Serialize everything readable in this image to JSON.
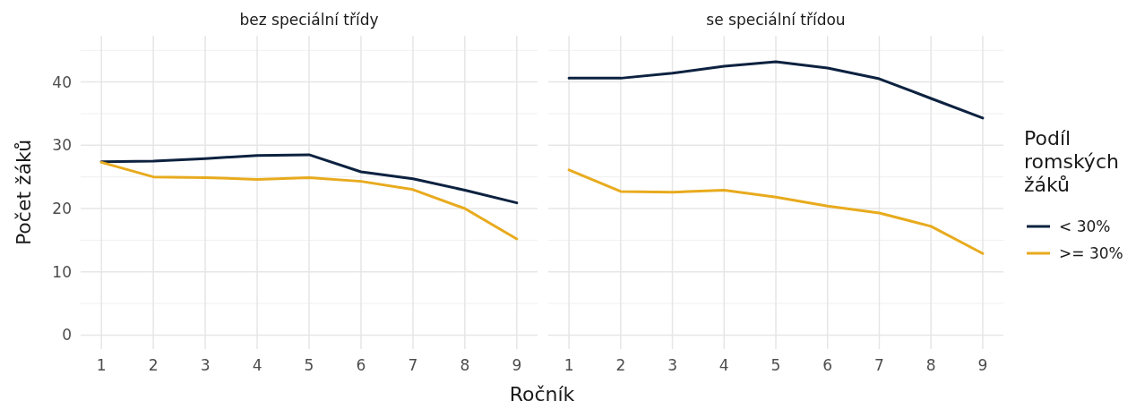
{
  "chart_data": [
    {
      "type": "line",
      "title": "bez speciální třídy",
      "xlabel": "Ročník",
      "ylabel": "Počet žáků",
      "x": [
        1,
        2,
        3,
        4,
        5,
        6,
        7,
        8,
        9
      ],
      "xlim": [
        0.6,
        9.4
      ],
      "xticks": [
        1,
        2,
        3,
        4,
        5,
        6,
        7,
        8,
        9
      ],
      "ylim": [
        -2.2,
        47.3
      ],
      "yticks": [
        0,
        {
          "value": 5,
          "label": null
        },
        10,
        {
          "value": 15,
          "label": null
        },
        20,
        {
          "value": 25,
          "label": null
        },
        30,
        {
          "value": 35,
          "label": null
        },
        40,
        {
          "value": 45,
          "label": null
        }
      ],
      "grid": true,
      "legend": false,
      "series": [
        {
          "color": "#0d2240",
          "values": [
            27.4,
            27.5,
            27.9,
            28.4,
            28.5,
            25.8,
            24.7,
            22.9,
            20.9
          ]
        },
        {
          "color": "#e8ab1e",
          "values": [
            27.3,
            25.0,
            24.9,
            24.6,
            24.9,
            24.3,
            23.0,
            20.0,
            15.2
          ]
        }
      ]
    },
    {
      "type": "line",
      "title": "se speciální třídou",
      "legend_title": "Podíl romských žáků",
      "x": [
        1,
        2,
        3,
        4,
        5,
        6,
        7,
        8,
        9
      ],
      "xlim": [
        0.6,
        9.4
      ],
      "xticks": [
        1,
        2,
        3,
        4,
        5,
        6,
        7,
        8,
        9
      ],
      "ylim": [
        -2.2,
        47.3
      ],
      "yticks": [
        0,
        {
          "value": 5,
          "label": null
        },
        10,
        {
          "value": 15,
          "label": null
        },
        20,
        {
          "value": 25,
          "label": null
        },
        30,
        {
          "value": 35,
          "label": null
        },
        40,
        {
          "value": 45,
          "label": null
        }
      ],
      "grid": true,
      "legend": "right",
      "tick_labels": "x",
      "series": [
        {
          "name": "< 30%",
          "color": "#0d2240",
          "values": [
            40.6,
            40.6,
            41.4,
            42.5,
            43.2,
            42.2,
            40.5,
            37.4,
            34.3
          ]
        },
        {
          "name": ">= 30%",
          "color": "#e8ab1e",
          "values": [
            26.1,
            22.7,
            22.6,
            22.9,
            21.8,
            20.4,
            19.3,
            17.2,
            12.9
          ]
        }
      ]
    }
  ]
}
